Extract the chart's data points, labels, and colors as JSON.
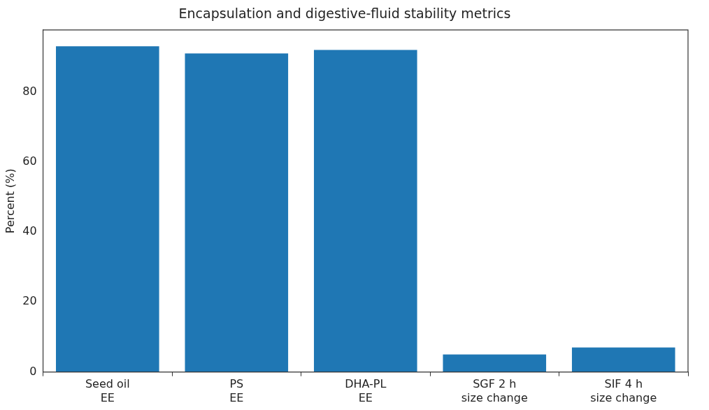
{
  "chart_data": {
    "type": "bar",
    "title": "Encapsulation and digestive-fluid stability metrics",
    "ylabel": "Percent (%)",
    "categories": [
      "Seed oil\nEE",
      "PS\nEE",
      "DHA-PL\nEE",
      "SGF 2 h\nsize change",
      "SIF 4 h\nsize change"
    ],
    "values": [
      93,
      91,
      92,
      5,
      7
    ],
    "color": "#1f77b4",
    "ylim": [
      0,
      97.7
    ],
    "yticks": [
      0,
      20,
      40,
      60,
      80
    ],
    "grid": false,
    "legend": false
  }
}
